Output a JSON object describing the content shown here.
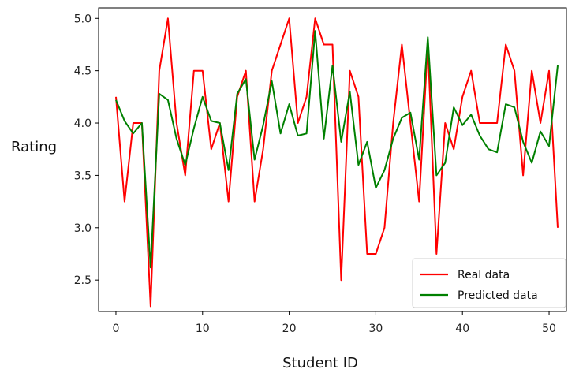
{
  "chart_data": {
    "type": "line",
    "title": "",
    "xlabel": "Student ID",
    "ylabel": "Rating",
    "xlim": [
      -2,
      52
    ],
    "ylim": [
      2.2,
      5.1
    ],
    "xticks": [
      0,
      10,
      20,
      30,
      40,
      50
    ],
    "xtick_labels": [
      "0",
      "10",
      "20",
      "30",
      "40",
      "50"
    ],
    "yticks": [
      2.5,
      3.0,
      3.5,
      4.0,
      4.5,
      5.0
    ],
    "ytick_labels": [
      "2.5",
      "3.0",
      "3.5",
      "4.0",
      "4.5",
      "5.0"
    ],
    "grid": false,
    "legend_position": "lower-right",
    "x": [
      0,
      1,
      2,
      3,
      4,
      5,
      6,
      7,
      8,
      9,
      10,
      11,
      12,
      13,
      14,
      15,
      16,
      17,
      18,
      19,
      20,
      21,
      22,
      23,
      24,
      25,
      26,
      27,
      28,
      29,
      30,
      31,
      32,
      33,
      34,
      35,
      36,
      37,
      38,
      39,
      40,
      41,
      42,
      43,
      44,
      45,
      46,
      47,
      48,
      49,
      50,
      51
    ],
    "series": [
      {
        "name": "Real data",
        "color": "#ff0000",
        "values": [
          4.25,
          3.25,
          4.0,
          4.0,
          2.25,
          4.5,
          5.0,
          4.0,
          3.5,
          4.5,
          4.5,
          3.75,
          4.0,
          3.25,
          4.25,
          4.5,
          3.25,
          3.75,
          4.5,
          4.75,
          5.0,
          4.0,
          4.25,
          5.0,
          4.75,
          4.75,
          2.5,
          4.5,
          4.25,
          2.75,
          2.75,
          3.0,
          4.0,
          4.75,
          4.0,
          3.25,
          4.75,
          2.75,
          4.0,
          3.75,
          4.25,
          4.5,
          4.0,
          4.0,
          4.0,
          4.75,
          4.5,
          3.5,
          4.5,
          4.0,
          4.5,
          3.0
        ]
      },
      {
        "name": "Predicted data",
        "color": "#008000",
        "values": [
          4.22,
          4.02,
          3.9,
          4.0,
          2.62,
          4.28,
          4.22,
          3.85,
          3.6,
          3.95,
          4.25,
          4.02,
          4.0,
          3.55,
          4.28,
          4.42,
          3.65,
          3.98,
          4.4,
          3.9,
          4.18,
          3.88,
          3.9,
          4.88,
          3.85,
          4.55,
          3.82,
          4.3,
          3.6,
          3.82,
          3.38,
          3.55,
          3.85,
          4.05,
          4.1,
          3.65,
          4.82,
          3.5,
          3.62,
          4.15,
          3.98,
          4.08,
          3.88,
          3.75,
          3.72,
          4.18,
          4.15,
          3.82,
          3.62,
          3.92,
          3.78,
          4.55
        ]
      }
    ]
  }
}
